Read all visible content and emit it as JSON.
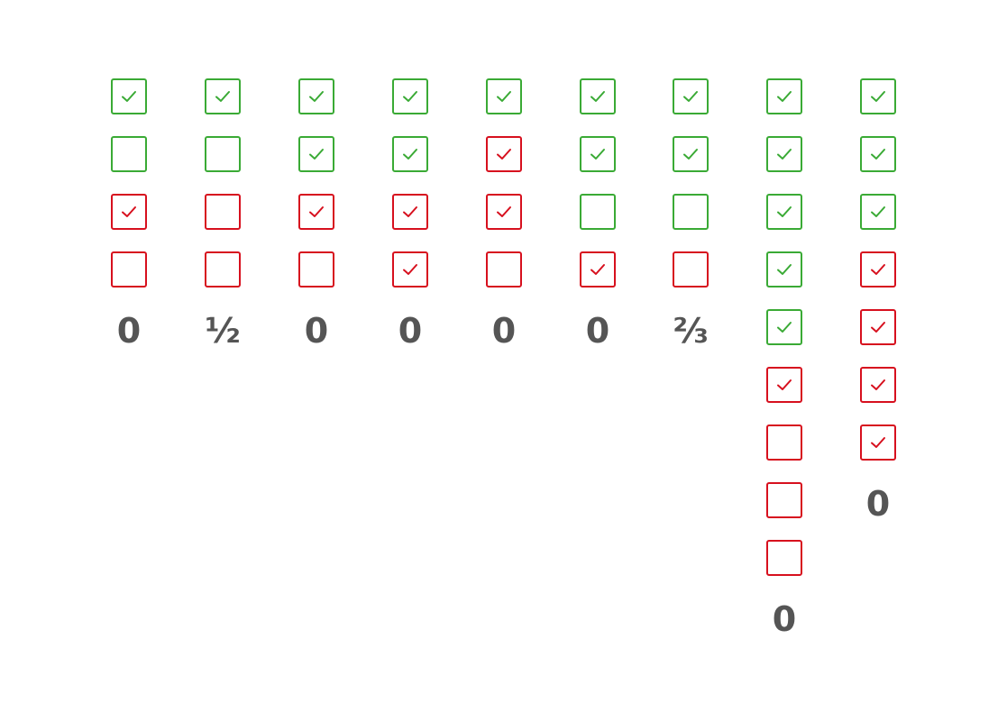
{
  "colors": {
    "correct": "#3aaa35",
    "incorrect": "#d7101e",
    "score_text": "#555555",
    "background": "#ffffff"
  },
  "legend_semantics": {
    "green": "correct option",
    "red": "incorrect option",
    "checked": "option selected"
  },
  "questions": [
    {
      "score": "0",
      "options": [
        {
          "correct": true,
          "checked": true
        },
        {
          "correct": true,
          "checked": false
        },
        {
          "correct": false,
          "checked": true
        },
        {
          "correct": false,
          "checked": false
        }
      ]
    },
    {
      "score": "½",
      "options": [
        {
          "correct": true,
          "checked": true
        },
        {
          "correct": true,
          "checked": false
        },
        {
          "correct": false,
          "checked": false
        },
        {
          "correct": false,
          "checked": false
        }
      ]
    },
    {
      "score": "0",
      "options": [
        {
          "correct": true,
          "checked": true
        },
        {
          "correct": true,
          "checked": true
        },
        {
          "correct": false,
          "checked": true
        },
        {
          "correct": false,
          "checked": false
        }
      ]
    },
    {
      "score": "0",
      "options": [
        {
          "correct": true,
          "checked": true
        },
        {
          "correct": true,
          "checked": true
        },
        {
          "correct": false,
          "checked": true
        },
        {
          "correct": false,
          "checked": true
        }
      ]
    },
    {
      "score": "0",
      "options": [
        {
          "correct": true,
          "checked": true
        },
        {
          "correct": false,
          "checked": true
        },
        {
          "correct": false,
          "checked": true
        },
        {
          "correct": false,
          "checked": false
        }
      ]
    },
    {
      "score": "0",
      "options": [
        {
          "correct": true,
          "checked": true
        },
        {
          "correct": true,
          "checked": true
        },
        {
          "correct": true,
          "checked": false
        },
        {
          "correct": false,
          "checked": true
        }
      ]
    },
    {
      "score": "⅔",
      "options": [
        {
          "correct": true,
          "checked": true
        },
        {
          "correct": true,
          "checked": true
        },
        {
          "correct": true,
          "checked": false
        },
        {
          "correct": false,
          "checked": false
        }
      ]
    },
    {
      "score": "0",
      "options": [
        {
          "correct": true,
          "checked": true
        },
        {
          "correct": true,
          "checked": true
        },
        {
          "correct": true,
          "checked": true
        },
        {
          "correct": true,
          "checked": true
        },
        {
          "correct": true,
          "checked": true
        },
        {
          "correct": false,
          "checked": true
        },
        {
          "correct": false,
          "checked": false
        },
        {
          "correct": false,
          "checked": false
        },
        {
          "correct": false,
          "checked": false
        }
      ]
    },
    {
      "score": "0",
      "options": [
        {
          "correct": true,
          "checked": true
        },
        {
          "correct": true,
          "checked": true
        },
        {
          "correct": true,
          "checked": true
        },
        {
          "correct": false,
          "checked": true
        },
        {
          "correct": false,
          "checked": true
        },
        {
          "correct": false,
          "checked": true
        },
        {
          "correct": false,
          "checked": true
        }
      ]
    }
  ]
}
